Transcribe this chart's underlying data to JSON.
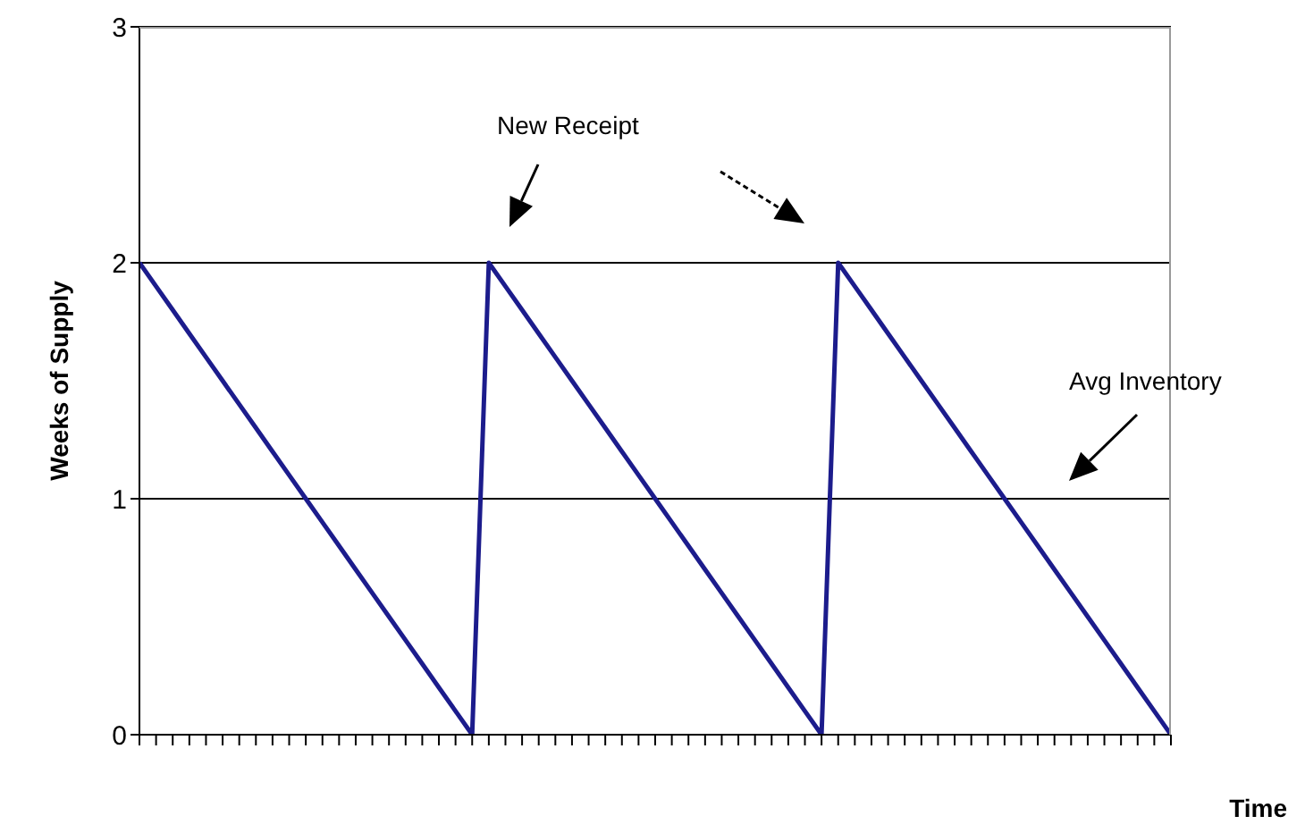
{
  "chart_data": {
    "type": "line",
    "xlabel": "Time",
    "ylabel": "Weeks of Supply",
    "categories": [
      null,
      null,
      null,
      null,
      null,
      null,
      null,
      null,
      null,
      null,
      null,
      null,
      null,
      null,
      null,
      null,
      null,
      null,
      null,
      null,
      null,
      null,
      null,
      null,
      null,
      null,
      null,
      null,
      null,
      null,
      null,
      null,
      null,
      null,
      null,
      null,
      null,
      null,
      null,
      null,
      null,
      null,
      null,
      null,
      null,
      null,
      null,
      null,
      null,
      null,
      null,
      null,
      null,
      null,
      null,
      null,
      null,
      null,
      null,
      null,
      null,
      null,
      null
    ],
    "series": [
      {
        "color": "#1c1c8c",
        "values": [
          2,
          1.9,
          1.8,
          1.7,
          1.6,
          1.5,
          1.4,
          1.3,
          1.2,
          1.1,
          1,
          0.9,
          0.8,
          0.7,
          0.6,
          0.5,
          0.4,
          0.3,
          0.2,
          0.1,
          0,
          2,
          1.9,
          1.8,
          1.7,
          1.6,
          1.5,
          1.4,
          1.3,
          1.2,
          1.1,
          1,
          0.9,
          0.8,
          0.7,
          0.6,
          0.5,
          0.4,
          0.3,
          0.2,
          0.1,
          0,
          2,
          1.9,
          1.8,
          1.7,
          1.6,
          1.5,
          1.4,
          1.3,
          1.2,
          1.1,
          1,
          0.9,
          0.8,
          0.7,
          0.6,
          0.5,
          0.4,
          0.3,
          0.2,
          0.1,
          0
        ]
      }
    ],
    "ylim": [
      0,
      3
    ],
    "yticks": [
      0,
      1,
      2,
      3
    ],
    "grid": "y",
    "marker": "none",
    "line_style": "solid",
    "annotations": [
      "New Receipt",
      "Avg Inventory"
    ]
  }
}
